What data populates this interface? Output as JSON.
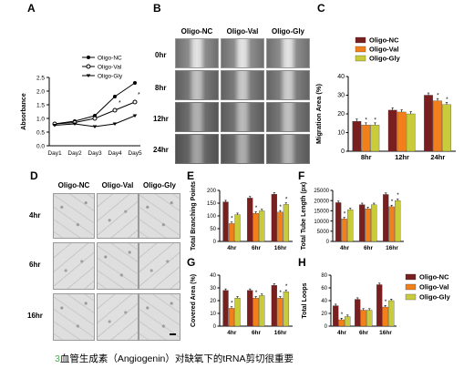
{
  "panels": {
    "A": "A",
    "B": "B",
    "C": "C",
    "D": "D",
    "E": "E",
    "F": "F",
    "G": "G",
    "H": "H"
  },
  "groups": [
    "Oligo-NC",
    "Oligo-Val",
    "Oligo-Gly"
  ],
  "colors": {
    "nc": "#7a1f1f",
    "val": "#f07f1c",
    "gly": "#c8cc3a"
  },
  "panelB": {
    "cols": [
      "Oligo-NC",
      "Oligo-Val",
      "Oligo-Gly"
    ],
    "rows": [
      "0hr",
      "8hr",
      "12hr",
      "24hr"
    ]
  },
  "panelD": {
    "cols": [
      "Oligo-NC",
      "Oligo-Val",
      "Oligo-Gly"
    ],
    "rows": [
      "4hr",
      "6hr",
      "16hr"
    ]
  },
  "caption": {
    "num": "3",
    "text": "血管生成素（Angiogenin）对缺氧下的tRNA剪切很重要"
  },
  "chart_data": [
    {
      "id": "A",
      "type": "line",
      "x": [
        "Day1",
        "Day2",
        "Day3",
        "Day4",
        "Day5"
      ],
      "ylabel": "Absorbance",
      "ylim": [
        0,
        2.5
      ],
      "yticks": [
        "0.0",
        "0.5",
        "1.0",
        "1.5",
        "2.0",
        "2.5"
      ],
      "series": [
        {
          "name": "Oligo-NC",
          "values": [
            0.8,
            0.9,
            1.1,
            1.8,
            2.3
          ]
        },
        {
          "name": "Oligo-Val",
          "values": [
            0.8,
            0.85,
            1.0,
            1.3,
            1.6
          ]
        },
        {
          "name": "Oligo-Gly",
          "values": [
            0.75,
            0.8,
            0.7,
            0.8,
            1.1
          ]
        }
      ],
      "legend": "top-left"
    },
    {
      "id": "C",
      "type": "bar",
      "categories": [
        "8hr",
        "12hr",
        "24hr"
      ],
      "ylabel": "Migration Area (%)",
      "ylim": [
        0,
        40
      ],
      "yticks": [
        "0",
        "10",
        "20",
        "30",
        "40"
      ],
      "series": [
        {
          "name": "Oligo-NC",
          "values": [
            16,
            22,
            30
          ]
        },
        {
          "name": "Oligo-Val",
          "values": [
            14,
            21,
            27
          ]
        },
        {
          "name": "Oligo-Gly",
          "values": [
            14,
            20,
            25
          ]
        }
      ],
      "stars": [
        [
          0,
          1
        ],
        [
          0,
          2
        ],
        [
          2,
          1
        ],
        [
          2,
          2
        ]
      ],
      "legend": "top-left"
    },
    {
      "id": "E",
      "type": "bar",
      "categories": [
        "4hr",
        "6hr",
        "16hr"
      ],
      "ylabel": "Total Branching Points",
      "ylim": [
        0,
        200
      ],
      "yticks": [
        "0",
        "50",
        "100",
        "150",
        "200"
      ],
      "series": [
        {
          "name": "Oligo-NC",
          "values": [
            155,
            170,
            185
          ]
        },
        {
          "name": "Oligo-Val",
          "values": [
            70,
            110,
            115
          ]
        },
        {
          "name": "Oligo-Gly",
          "values": [
            105,
            120,
            145
          ]
        }
      ],
      "stars": [
        [
          0,
          1
        ],
        [
          1,
          1
        ],
        [
          2,
          1
        ],
        [
          2,
          2
        ]
      ]
    },
    {
      "id": "F",
      "type": "bar",
      "categories": [
        "4hr",
        "6hr",
        "16hr"
      ],
      "ylabel": "Total Tube Length (px)",
      "ylim": [
        0,
        25000
      ],
      "yticks": [
        "0",
        "5000",
        "10000",
        "15000",
        "20000",
        "25000"
      ],
      "series": [
        {
          "name": "Oligo-NC",
          "values": [
            19000,
            18000,
            23000
          ]
        },
        {
          "name": "Oligo-Val",
          "values": [
            11000,
            16000,
            17000
          ]
        },
        {
          "name": "Oligo-Gly",
          "values": [
            15500,
            18000,
            20000
          ]
        }
      ],
      "stars": [
        [
          0,
          1
        ],
        [
          2,
          1
        ],
        [
          2,
          2
        ]
      ]
    },
    {
      "id": "G",
      "type": "bar",
      "categories": [
        "4hr",
        "6hr",
        "16hr"
      ],
      "ylabel": "Covered Area (%)",
      "ylim": [
        0,
        40
      ],
      "yticks": [
        "0",
        "10",
        "20",
        "30",
        "40"
      ],
      "series": [
        {
          "name": "Oligo-NC",
          "values": [
            28,
            28,
            32
          ]
        },
        {
          "name": "Oligo-Val",
          "values": [
            14,
            22,
            22
          ]
        },
        {
          "name": "Oligo-Gly",
          "values": [
            22,
            24,
            27
          ]
        }
      ],
      "stars": [
        [
          0,
          1
        ],
        [
          1,
          1
        ],
        [
          2,
          1
        ],
        [
          2,
          2
        ]
      ]
    },
    {
      "id": "H",
      "type": "bar",
      "categories": [
        "4hr",
        "6hr",
        "16hr"
      ],
      "ylabel": "Total Loops",
      "ylim": [
        0,
        80
      ],
      "yticks": [
        "0",
        "20",
        "40",
        "60",
        "80"
      ],
      "series": [
        {
          "name": "Oligo-NC",
          "values": [
            32,
            42,
            65
          ]
        },
        {
          "name": "Oligo-Val",
          "values": [
            10,
            25,
            30
          ]
        },
        {
          "name": "Oligo-Gly",
          "values": [
            15,
            25,
            40
          ]
        }
      ],
      "stars": [
        [
          0,
          1
        ],
        [
          2,
          1
        ]
      ],
      "legend": "right"
    }
  ]
}
